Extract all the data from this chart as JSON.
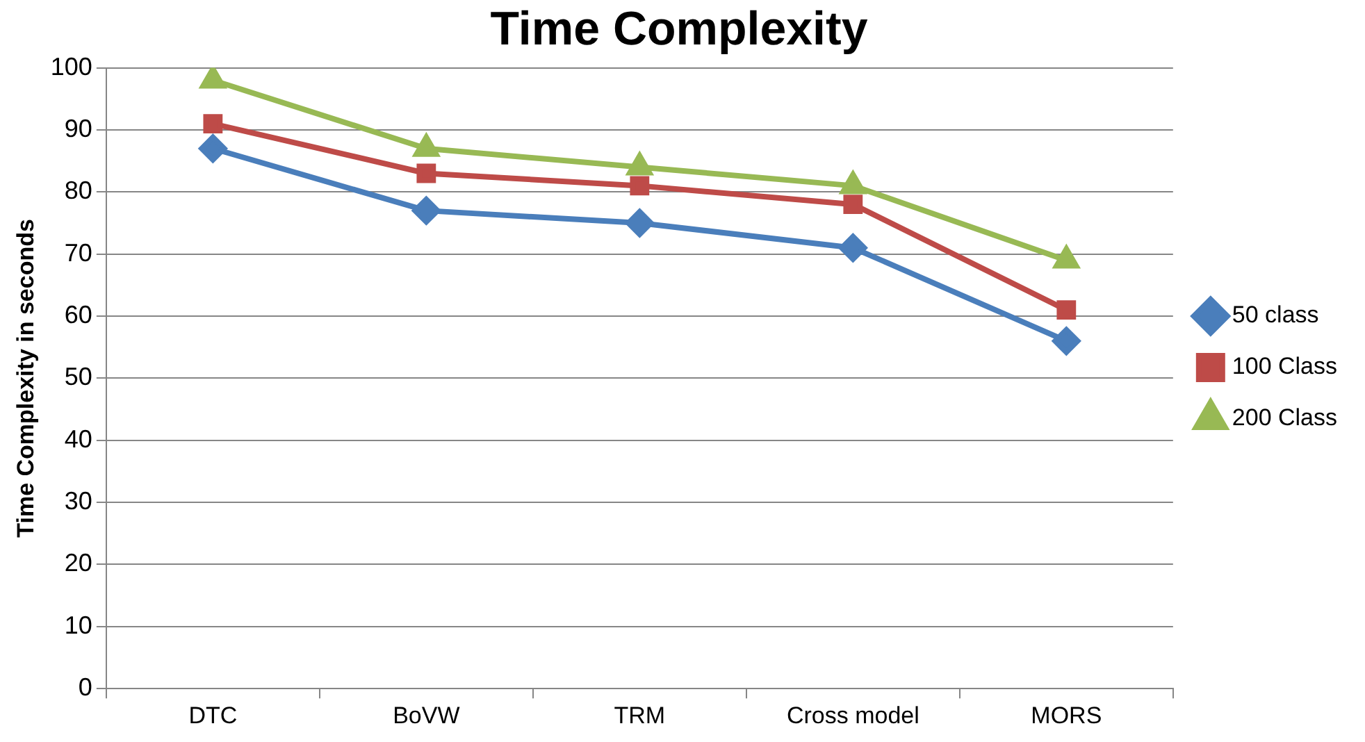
{
  "chart_data": {
    "type": "line",
    "title": "Time Complexity",
    "ylabel": "Time Complexity in seconds",
    "categories": [
      "DTC",
      "BoVW",
      "TRM",
      "Cross model",
      "MORS"
    ],
    "series": [
      {
        "name": "50 class",
        "color": "#4a7ebb",
        "marker": "diamond",
        "values": [
          87,
          77,
          75,
          71,
          56
        ]
      },
      {
        "name": "100 Class",
        "color": "#be4b48",
        "marker": "square",
        "values": [
          91,
          83,
          81,
          78,
          61
        ]
      },
      {
        "name": "200 Class",
        "color": "#98b954",
        "marker": "triangle",
        "values": [
          98,
          87,
          84,
          81,
          69
        ]
      }
    ],
    "ylim": [
      0,
      100
    ],
    "yticks": [
      0,
      10,
      20,
      30,
      40,
      50,
      60,
      70,
      80,
      90,
      100
    ],
    "grid": "y",
    "legend": "right",
    "line_style": "solid"
  }
}
